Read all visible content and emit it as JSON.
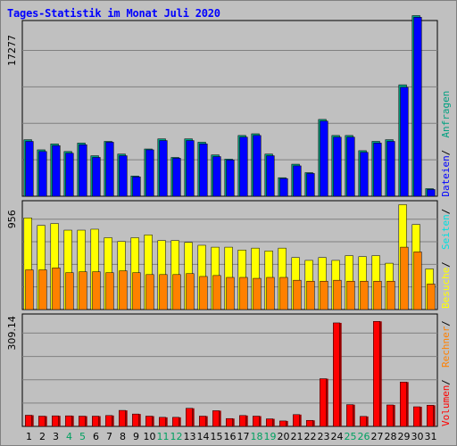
{
  "chart_data": {
    "type": "bar",
    "title": "Tages-Statistik im Monat Juli 2020",
    "categories": [
      "1",
      "2",
      "3",
      "4",
      "5",
      "6",
      "7",
      "8",
      "9",
      "10",
      "11",
      "12",
      "13",
      "14",
      "15",
      "16",
      "17",
      "18",
      "19",
      "20",
      "21",
      "22",
      "23",
      "24",
      "25",
      "26",
      "27",
      "28",
      "29",
      "30",
      "31"
    ],
    "weekend_days": [
      "4",
      "5",
      "11",
      "12",
      "18",
      "19",
      "25",
      "26"
    ],
    "panels": [
      {
        "tick_label": "17277",
        "tick_value": 17277,
        "series": [
          {
            "name": "Anfragen",
            "color": "#00a080",
            "values": [
              6700,
              5500,
              6200,
              5300,
              6300,
              4800,
              6500,
              5000,
              2400,
              5600,
              6800,
              4600,
              6800,
              6400,
              4900,
              4400,
              7200,
              7400,
              5000,
              2200,
              3800,
              2800,
              9100,
              7200,
              7200,
              5400,
              6500,
              6700,
              13200,
              21400,
              900
            ]
          },
          {
            "name": "Dateien",
            "color": "#0000ff",
            "values": [
              6500,
              5300,
              6000,
              5100,
              6100,
              4600,
              6400,
              4800,
              2300,
              5500,
              6600,
              4500,
              6600,
              6200,
              4700,
              4300,
              7000,
              7200,
              4800,
              2100,
              3600,
              2700,
              8900,
              7000,
              7000,
              5200,
              6300,
              6500,
              12900,
              21200,
              800
            ]
          }
        ]
      },
      {
        "tick_label": "956",
        "tick_value": 956,
        "series": [
          {
            "name": "Seiten",
            "color": "#00e0e0",
            "values": [
              0,
              0,
              0,
              0,
              0,
              0,
              0,
              0,
              0,
              0,
              0,
              0,
              0,
              0,
              0,
              0,
              0,
              0,
              0,
              0,
              0,
              0,
              0,
              0,
              0,
              0,
              0,
              0,
              0,
              0,
              0
            ]
          },
          {
            "name": "Besuche",
            "color": "#ffff00",
            "values": [
              970,
              890,
              910,
              840,
              840,
              850,
              760,
              720,
              760,
              790,
              730,
              730,
              710,
              680,
              660,
              660,
              630,
              650,
              620,
              650,
              550,
              520,
              550,
              520,
              570,
              560,
              570,
              490,
              1110,
              900,
              430
            ]
          },
          {
            "name": "Rechner",
            "color": "#ff8000",
            "values": [
              420,
              420,
              440,
              390,
              400,
              400,
              390,
              410,
              390,
              370,
              370,
              370,
              380,
              350,
              360,
              340,
              340,
              330,
              340,
              340,
              310,
              300,
              300,
              310,
              300,
              300,
              300,
              300,
              660,
              610,
              270
            ]
          }
        ]
      },
      {
        "tick_label": "309.14",
        "tick_value": 309.14,
        "series": [
          {
            "name": "Volumen",
            "color": "#ff0000",
            "values": [
              37,
              34,
              35,
              35,
              34,
              34,
              36,
              53,
              41,
              34,
              30,
              30,
              60,
              34,
              52,
              26,
              36,
              34,
              25,
              18,
              39,
              20,
              158,
              343,
              72,
              33,
              348,
              71,
              147,
              65,
              70
            ]
          }
        ]
      }
    ],
    "legend": [
      "Volumen",
      "Rechner",
      "Besuche",
      "Seiten",
      "Dateien",
      "Anfragen"
    ],
    "legend_colors": {
      "Volumen": "#ff0000",
      "Rechner": "#ff8000",
      "Besuche": "#ffff00",
      "Seiten": "#00e0e0",
      "Dateien": "#0000ff",
      "Anfragen": "#00a080"
    },
    "axis_colors": {
      "weekday": "#000000",
      "weekend": "#00a060"
    }
  }
}
